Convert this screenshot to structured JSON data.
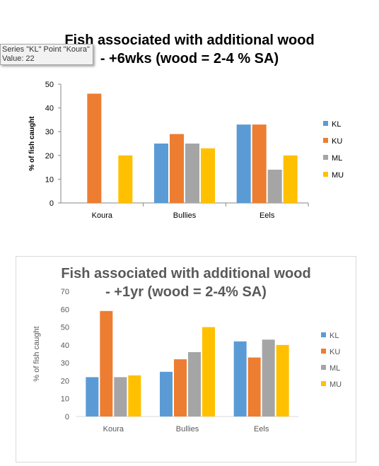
{
  "colors": {
    "KL": "#5b9bd5",
    "KU": "#ed7d31",
    "ML": "#a5a5a5",
    "MU": "#ffc000"
  },
  "tooltip": {
    "line1": "Series \"KL\" Point \"Koura\"",
    "line2": "Value: 22"
  },
  "chart_data": [
    {
      "type": "bar",
      "title_line1": "Fish associated with additional wood",
      "title_line2": "-  +6wks (wood = 2-4 % SA)",
      "ylabel": "% of fish caught",
      "xlabel": "",
      "ylim": [
        0,
        50
      ],
      "yticks": [
        "0",
        "10",
        "20",
        "30",
        "40",
        "50"
      ],
      "categories": [
        "Koura",
        "Bullies",
        "Eels"
      ],
      "legend_position": "right",
      "grid": false,
      "series": [
        {
          "name": "KL",
          "values": [
            0,
            25,
            33
          ]
        },
        {
          "name": "KU",
          "values": [
            46,
            29,
            33
          ]
        },
        {
          "name": "ML",
          "values": [
            0,
            25,
            14
          ]
        },
        {
          "name": "MU",
          "values": [
            20,
            23,
            20
          ]
        }
      ]
    },
    {
      "type": "bar",
      "title_line1": "Fish associated with additional wood",
      "title_line2": "-  +1yr (wood = 2-4% SA)",
      "ylabel": "% of fish caught",
      "xlabel": "",
      "ylim": [
        0,
        70
      ],
      "yticks": [
        "0",
        "10",
        "20",
        "30",
        "40",
        "50",
        "60",
        "70"
      ],
      "categories": [
        "Koura",
        "Bullies",
        "Eels"
      ],
      "legend_position": "right",
      "grid": false,
      "series": [
        {
          "name": "KL",
          "values": [
            22,
            25,
            42
          ]
        },
        {
          "name": "KU",
          "values": [
            59,
            32,
            33
          ]
        },
        {
          "name": "ML",
          "values": [
            22,
            36,
            43
          ]
        },
        {
          "name": "MU",
          "values": [
            23,
            50,
            40
          ]
        }
      ]
    }
  ]
}
